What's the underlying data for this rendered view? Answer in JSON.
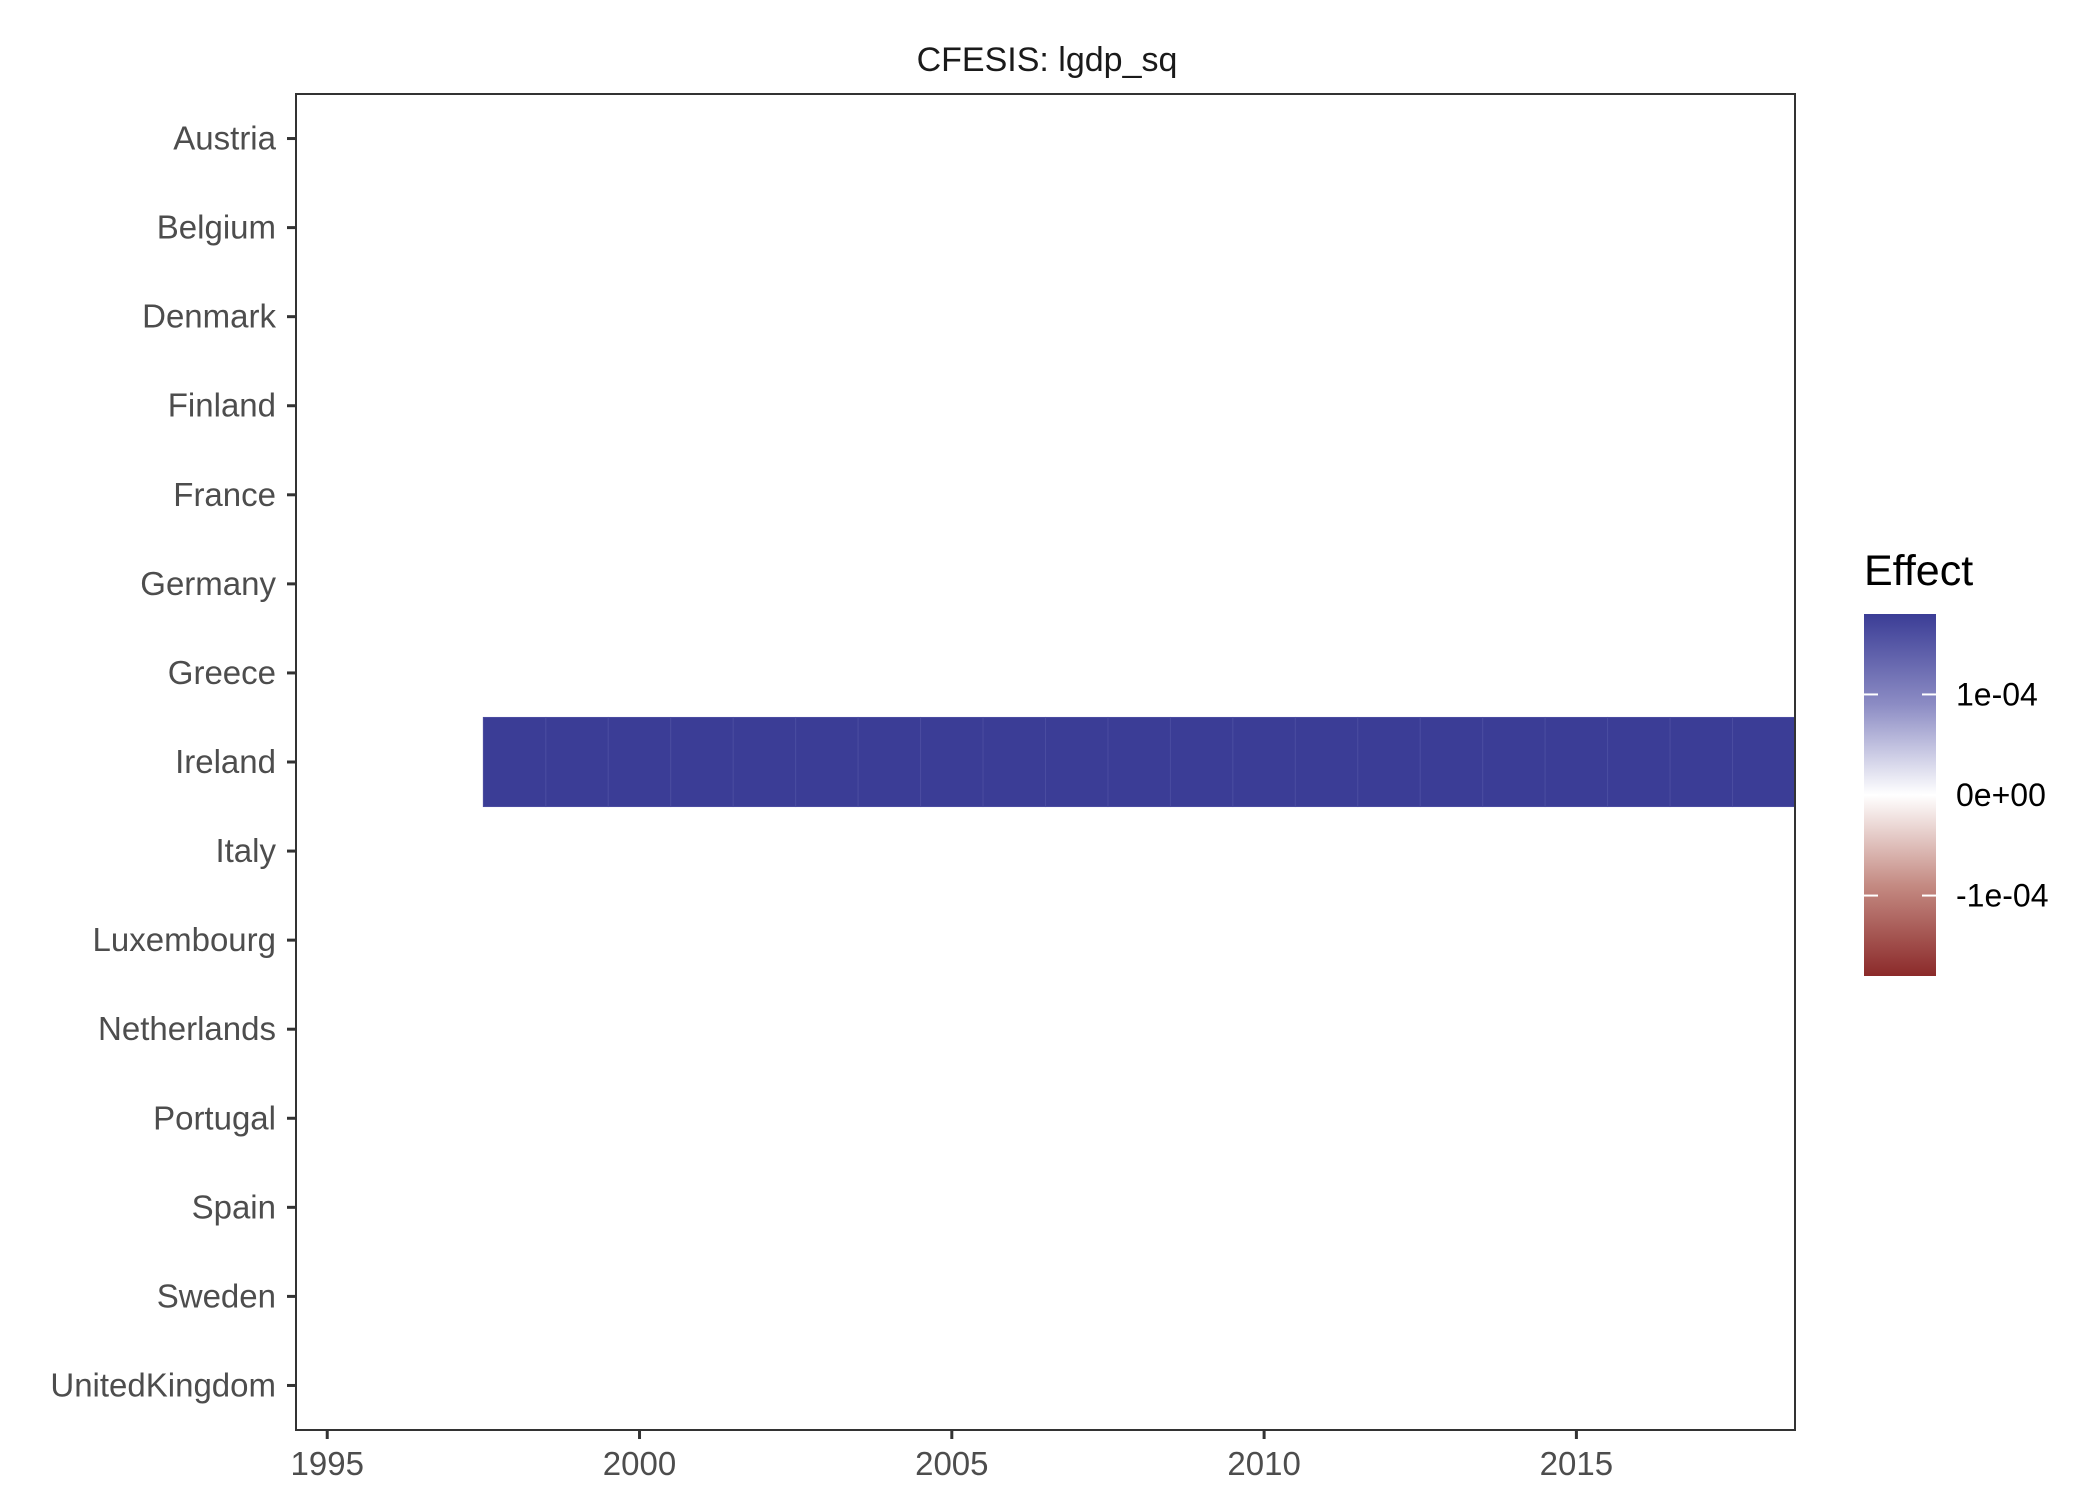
{
  "chart_data": {
    "type": "heatmap",
    "title": "CFESIS: lgdp_sq",
    "xlabel": "",
    "ylabel": "",
    "xlim": [
      1994.5,
      2018.5
    ],
    "x_ticks": [
      1995,
      2000,
      2005,
      2010,
      2015
    ],
    "x_tick_labels": [
      "1995",
      "2000",
      "2005",
      "2010",
      "2015"
    ],
    "categories": [
      "Austria",
      "Belgium",
      "Denmark",
      "Finland",
      "France",
      "Germany",
      "Greece",
      "Ireland",
      "Italy",
      "Luxembourg",
      "Netherlands",
      "Portugal",
      "Spain",
      "Sweden",
      "UnitedKingdom"
    ],
    "cells": [
      {
        "country": "Ireland",
        "year": 1998,
        "effect": 0.00018
      },
      {
        "country": "Ireland",
        "year": 1999,
        "effect": 0.00018
      },
      {
        "country": "Ireland",
        "year": 2000,
        "effect": 0.00018
      },
      {
        "country": "Ireland",
        "year": 2001,
        "effect": 0.00018
      },
      {
        "country": "Ireland",
        "year": 2002,
        "effect": 0.00018
      },
      {
        "country": "Ireland",
        "year": 2003,
        "effect": 0.00018
      },
      {
        "country": "Ireland",
        "year": 2004,
        "effect": 0.00018
      },
      {
        "country": "Ireland",
        "year": 2005,
        "effect": 0.00018
      },
      {
        "country": "Ireland",
        "year": 2006,
        "effect": 0.00018
      },
      {
        "country": "Ireland",
        "year": 2007,
        "effect": 0.00018
      },
      {
        "country": "Ireland",
        "year": 2008,
        "effect": 0.00018
      },
      {
        "country": "Ireland",
        "year": 2009,
        "effect": 0.00018
      },
      {
        "country": "Ireland",
        "year": 2010,
        "effect": 0.00018
      },
      {
        "country": "Ireland",
        "year": 2011,
        "effect": 0.00018
      },
      {
        "country": "Ireland",
        "year": 2012,
        "effect": 0.00018
      },
      {
        "country": "Ireland",
        "year": 2013,
        "effect": 0.00018
      },
      {
        "country": "Ireland",
        "year": 2014,
        "effect": 0.00018
      },
      {
        "country": "Ireland",
        "year": 2015,
        "effect": 0.00018
      },
      {
        "country": "Ireland",
        "year": 2016,
        "effect": 0.00018
      },
      {
        "country": "Ireland",
        "year": 2017,
        "effect": 0.00018
      },
      {
        "country": "Ireland",
        "year": 2018,
        "effect": 0.00018
      }
    ],
    "legend": {
      "title": "Effect",
      "placement": "right",
      "limits": [
        -0.00018,
        0.00018
      ],
      "breaks": [
        0.0001,
        0,
        -0.0001
      ],
      "break_labels": [
        "1e-04",
        "0e+00",
        "-1e-04"
      ],
      "colors": {
        "high": "#3b3d96",
        "mid": "#ffffff",
        "low": "#8b2a2a"
      }
    },
    "grid": false
  }
}
